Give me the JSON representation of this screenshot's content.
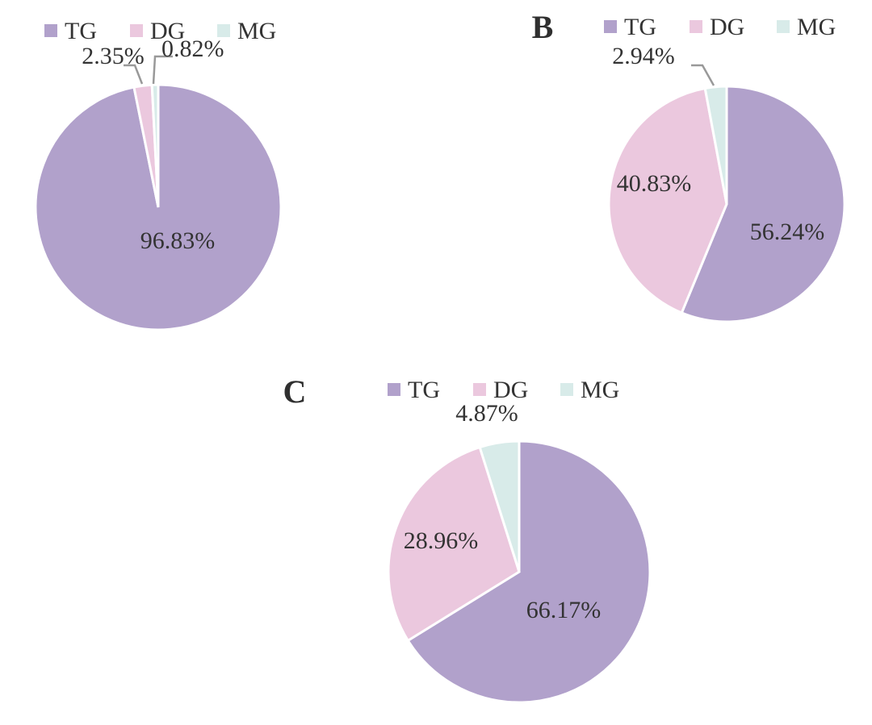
{
  "series_names": [
    "TG",
    "DG",
    "MG"
  ],
  "colors": {
    "TG": "#b1a1cb",
    "DG": "#ebc8de",
    "MG": "#d8ebe9"
  },
  "chart_data": [
    {
      "type": "pie",
      "panel": "A",
      "panel_label": "",
      "legend": [
        "TG",
        "DG",
        "MG"
      ],
      "slices": [
        {
          "name": "TG",
          "value": 96.83,
          "label": "96.83%"
        },
        {
          "name": "DG",
          "value": 2.35,
          "label": "2.35%"
        },
        {
          "name": "MG",
          "value": 0.82,
          "label": "0.82%"
        }
      ]
    },
    {
      "type": "pie",
      "panel": "B",
      "panel_label": "B",
      "legend": [
        "TG",
        "DG",
        "MG"
      ],
      "slices": [
        {
          "name": "TG",
          "value": 56.24,
          "label": "56.24%"
        },
        {
          "name": "DG",
          "value": 40.83,
          "label": "40.83%"
        },
        {
          "name": "MG",
          "value": 2.94,
          "label": "2.94%"
        }
      ]
    },
    {
      "type": "pie",
      "panel": "C",
      "panel_label": "C",
      "legend": [
        "TG",
        "DG",
        "MG"
      ],
      "slices": [
        {
          "name": "TG",
          "value": 66.17,
          "label": "66.17%"
        },
        {
          "name": "DG",
          "value": 28.96,
          "label": "28.96%"
        },
        {
          "name": "MG",
          "value": 4.87,
          "label": "4.87%"
        }
      ]
    }
  ]
}
